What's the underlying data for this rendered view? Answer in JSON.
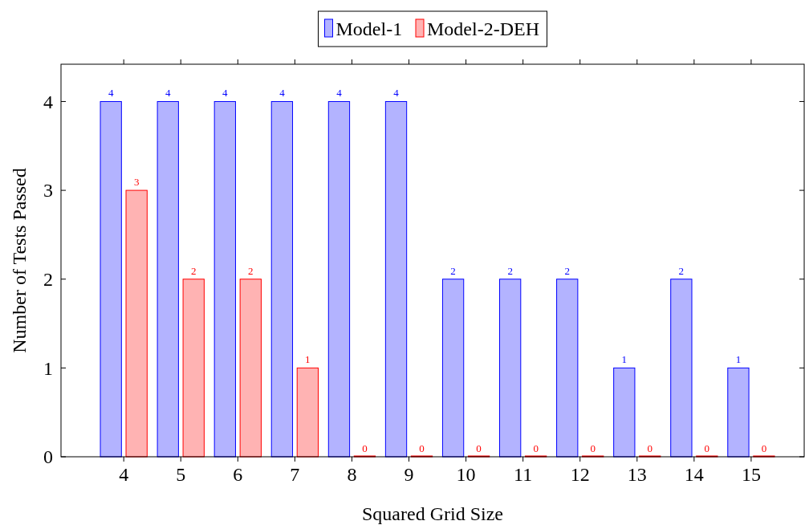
{
  "chart_data": {
    "type": "bar",
    "xlabel": "Squared Grid Size",
    "ylabel": "Number of Tests Passed",
    "categories": [
      "4",
      "5",
      "6",
      "7",
      "8",
      "9",
      "10",
      "11",
      "12",
      "13",
      "14",
      "15"
    ],
    "series": [
      {
        "name": "Model-1",
        "color": "#b3b3ff",
        "values": [
          4,
          4,
          4,
          4,
          4,
          4,
          2,
          2,
          2,
          1,
          2,
          1
        ]
      },
      {
        "name": "Model-2-DEH",
        "color": "#ffb3b3",
        "values": [
          3,
          2,
          2,
          1,
          0,
          0,
          0,
          0,
          0,
          0,
          0,
          0
        ]
      }
    ],
    "ylim": [
      0,
      4.42
    ],
    "yticks": [
      0,
      1,
      2,
      3,
      4
    ],
    "data_labels": true,
    "legend": "top",
    "grid": false
  }
}
